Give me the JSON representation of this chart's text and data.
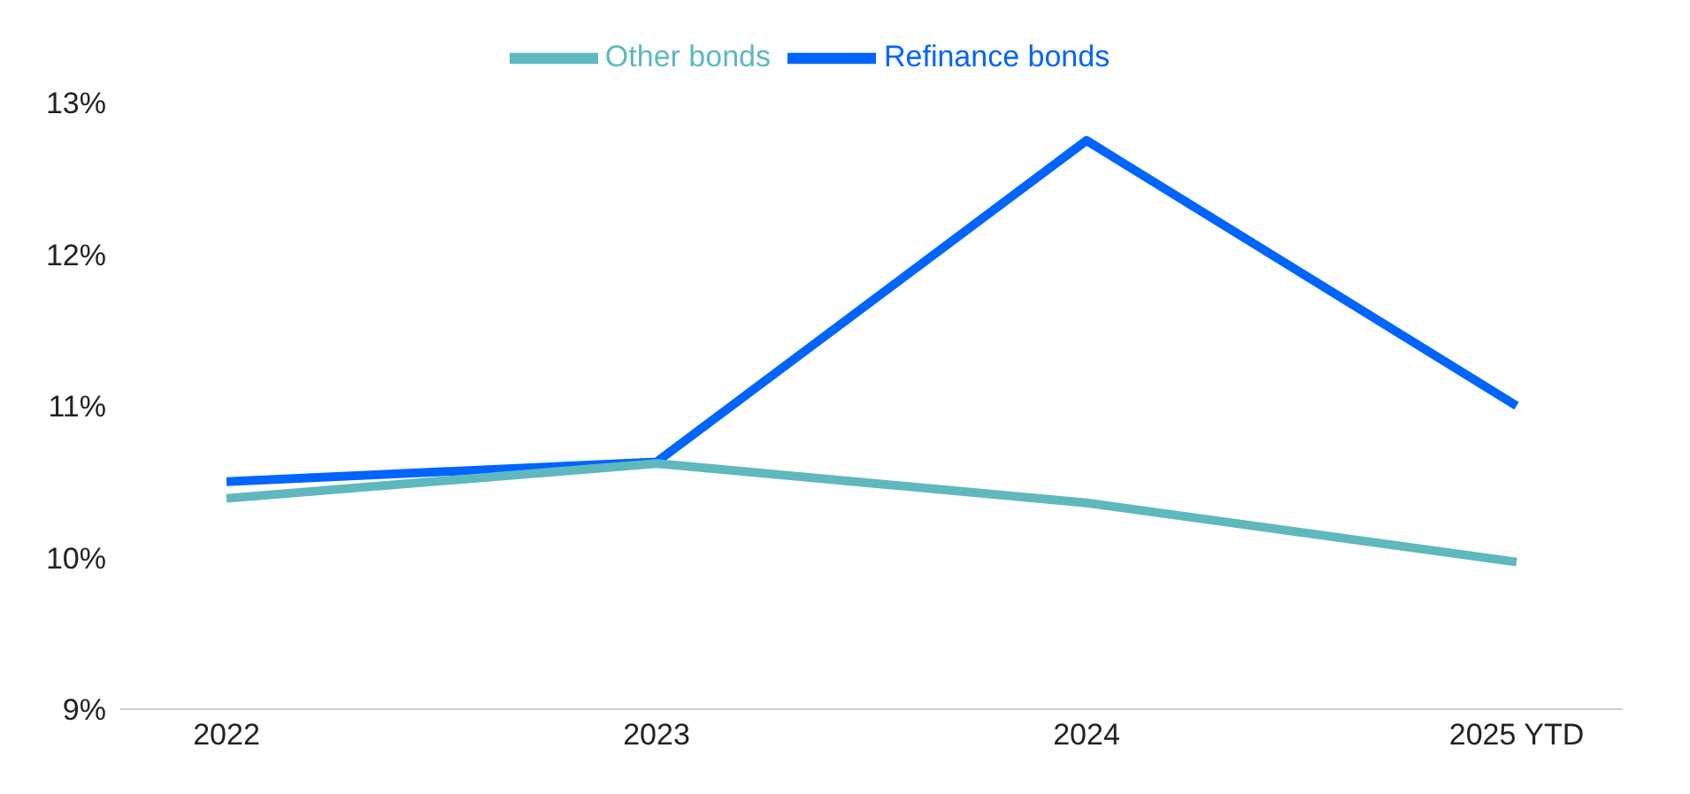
{
  "chart_data": {
    "type": "line",
    "categories": [
      "2022",
      "2023",
      "2024",
      "2025 YTD"
    ],
    "series": [
      {
        "name": "Refinance bonds",
        "color": "#0064ff",
        "values": [
          10.5,
          10.63,
          12.75,
          11.0
        ]
      },
      {
        "name": "Other bonds",
        "color": "#5fb8be",
        "values": [
          10.39,
          10.62,
          10.36,
          9.97
        ]
      }
    ],
    "ylim": [
      9,
      13
    ],
    "yticks": [
      {
        "value": 9,
        "label": "9%"
      },
      {
        "value": 10,
        "label": "10%"
      },
      {
        "value": 11,
        "label": "11%"
      },
      {
        "value": 12,
        "label": "12%"
      },
      {
        "value": 13,
        "label": "13%"
      }
    ],
    "grid": false,
    "legend": "top",
    "marker": "none",
    "line_style": "solid"
  }
}
